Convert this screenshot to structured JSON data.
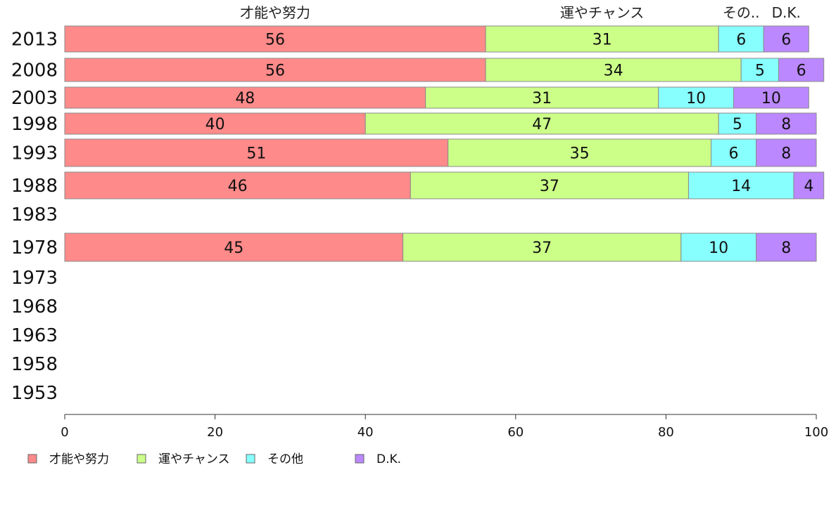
{
  "chart_data": {
    "type": "bar",
    "orientation": "horizontal",
    "stacked": true,
    "categories": [
      "2013",
      "2008",
      "2003",
      "1998",
      "1993",
      "1988",
      "1983",
      "1978",
      "1973",
      "1968",
      "1963",
      "1958",
      "1953"
    ],
    "series": [
      {
        "name": "才能や努力",
        "top_label": "才能や努力",
        "color": "#ff8a8a",
        "values": [
          56,
          56,
          48,
          40,
          51,
          46,
          null,
          45,
          null,
          null,
          null,
          null,
          null
        ]
      },
      {
        "name": "運やチャンス",
        "top_label": "運やチャンス",
        "color": "#ccff88",
        "values": [
          31,
          34,
          31,
          47,
          35,
          37,
          null,
          37,
          null,
          null,
          null,
          null,
          null
        ]
      },
      {
        "name": "その他",
        "top_label": "その..",
        "color": "#88ffff",
        "values": [
          6,
          5,
          10,
          5,
          6,
          14,
          null,
          10,
          null,
          null,
          null,
          null,
          null
        ]
      },
      {
        "name": "D.K.",
        "top_label": "D.K.",
        "color": "#bb88ff",
        "values": [
          6,
          6,
          10,
          8,
          8,
          4,
          null,
          8,
          null,
          null,
          null,
          null,
          null
        ]
      }
    ],
    "xlim": [
      0,
      100
    ],
    "xticks": [
      "0",
      "20",
      "40",
      "60",
      "80",
      "100"
    ],
    "legend_position": "bottom-left"
  }
}
